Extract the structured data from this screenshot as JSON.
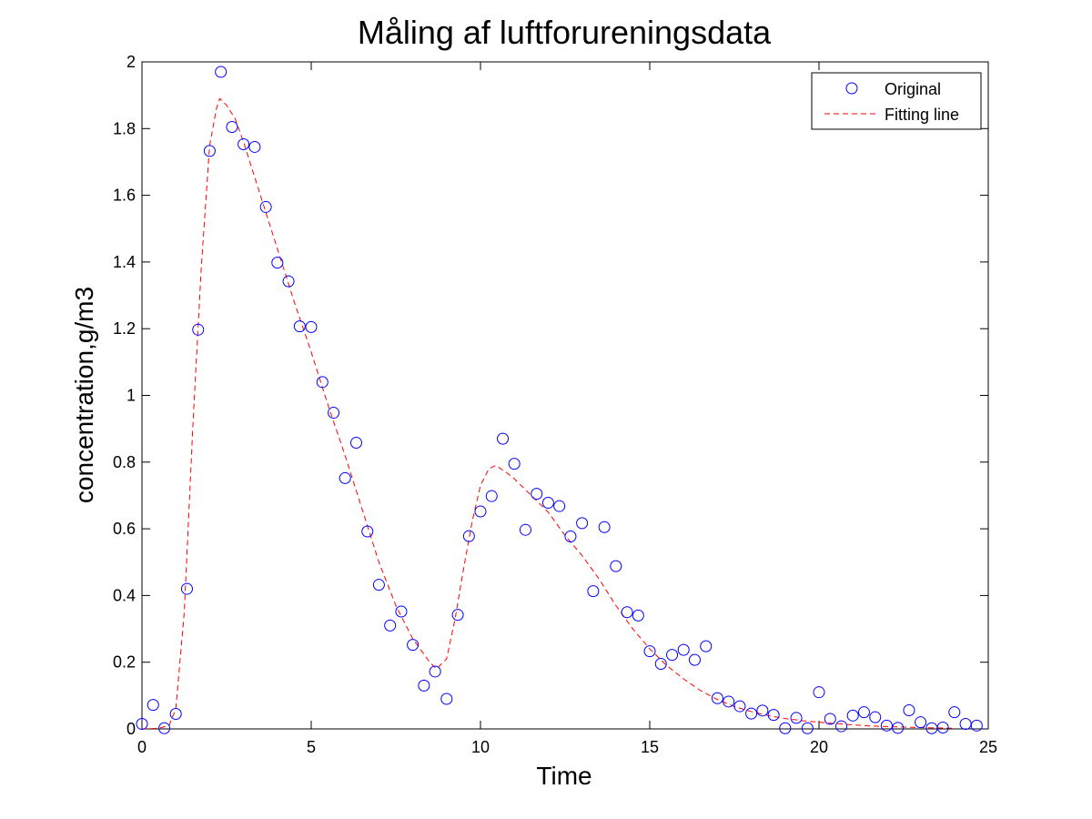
{
  "chart_data": {
    "type": "scatter",
    "title": "Måling af luftforureningsdata",
    "xlabel": "Time",
    "ylabel": "concentration,g/m3",
    "xlim": [
      0,
      25
    ],
    "ylim": [
      0,
      2
    ],
    "xticks": [
      0,
      5,
      10,
      15,
      20,
      25
    ],
    "yticks": [
      0,
      0.2,
      0.4,
      0.6,
      0.8,
      1,
      1.2,
      1.4,
      1.6,
      1.8,
      2
    ],
    "grid": false,
    "legend_position": "top-right",
    "series": [
      {
        "name": "Original",
        "kind": "markers",
        "color": "#0000ff",
        "points": [
          [
            0,
            0.015
          ],
          [
            0.33,
            0.072
          ],
          [
            0.66,
            0.002
          ],
          [
            1,
            0.045
          ],
          [
            1.33,
            0.42
          ],
          [
            1.66,
            1.197
          ],
          [
            2,
            1.733
          ],
          [
            2.33,
            1.97
          ],
          [
            2.66,
            1.805
          ],
          [
            3,
            1.753
          ],
          [
            3.33,
            1.745
          ],
          [
            3.66,
            1.565
          ],
          [
            4,
            1.398
          ],
          [
            4.33,
            1.342
          ],
          [
            4.66,
            1.207
          ],
          [
            5,
            1.205
          ],
          [
            5.33,
            1.04
          ],
          [
            5.66,
            0.948
          ],
          [
            6,
            0.752
          ],
          [
            6.33,
            0.858
          ],
          [
            6.66,
            0.592
          ],
          [
            7,
            0.432
          ],
          [
            7.33,
            0.31
          ],
          [
            7.66,
            0.352
          ],
          [
            8,
            0.252
          ],
          [
            8.33,
            0.13
          ],
          [
            8.66,
            0.172
          ],
          [
            9,
            0.09
          ],
          [
            9.33,
            0.342
          ],
          [
            9.66,
            0.578
          ],
          [
            10,
            0.652
          ],
          [
            10.33,
            0.698
          ],
          [
            10.66,
            0.87
          ],
          [
            11,
            0.795
          ],
          [
            11.33,
            0.597
          ],
          [
            11.66,
            0.705
          ],
          [
            12,
            0.678
          ],
          [
            12.33,
            0.668
          ],
          [
            12.66,
            0.577
          ],
          [
            13,
            0.617
          ],
          [
            13.33,
            0.413
          ],
          [
            13.66,
            0.605
          ],
          [
            14,
            0.488
          ],
          [
            14.33,
            0.35
          ],
          [
            14.66,
            0.34
          ],
          [
            15,
            0.233
          ],
          [
            15.33,
            0.195
          ],
          [
            15.66,
            0.222
          ],
          [
            16,
            0.237
          ],
          [
            16.33,
            0.207
          ],
          [
            16.66,
            0.248
          ],
          [
            17,
            0.092
          ],
          [
            17.33,
            0.082
          ],
          [
            17.66,
            0.068
          ],
          [
            18,
            0.046
          ],
          [
            18.33,
            0.055
          ],
          [
            18.66,
            0.042
          ],
          [
            19,
            0.002
          ],
          [
            19.33,
            0.033
          ],
          [
            19.66,
            0.002
          ],
          [
            20,
            0.11
          ],
          [
            20.33,
            0.03
          ],
          [
            20.66,
            0.008
          ],
          [
            21,
            0.04
          ],
          [
            21.33,
            0.05
          ],
          [
            21.66,
            0.035
          ],
          [
            22,
            0.01
          ],
          [
            22.33,
            0.003
          ],
          [
            22.66,
            0.056
          ],
          [
            23,
            0.02
          ],
          [
            23.33,
            0.002
          ],
          [
            23.66,
            0.004
          ],
          [
            24,
            0.05
          ],
          [
            24.33,
            0.015
          ],
          [
            24.66,
            0.01
          ]
        ]
      },
      {
        "name": "Fitting line",
        "kind": "dashed-line",
        "color": "#ff0000",
        "points": [
          [
            0,
            0
          ],
          [
            0.5,
            0.002
          ],
          [
            0.8,
            0.01
          ],
          [
            1.0,
            0.06
          ],
          [
            1.25,
            0.35
          ],
          [
            1.5,
            0.9
          ],
          [
            1.75,
            1.38
          ],
          [
            2.0,
            1.75
          ],
          [
            2.2,
            1.86
          ],
          [
            2.3,
            1.89
          ],
          [
            2.5,
            1.87
          ],
          [
            2.75,
            1.83
          ],
          [
            3.0,
            1.76
          ],
          [
            3.5,
            1.6
          ],
          [
            4.0,
            1.44
          ],
          [
            4.5,
            1.28
          ],
          [
            5.0,
            1.13
          ],
          [
            5.5,
            0.97
          ],
          [
            6.0,
            0.82
          ],
          [
            6.5,
            0.66
          ],
          [
            7.0,
            0.5
          ],
          [
            7.5,
            0.37
          ],
          [
            8.0,
            0.27
          ],
          [
            8.5,
            0.2
          ],
          [
            8.7,
            0.18
          ],
          [
            9.0,
            0.21
          ],
          [
            9.25,
            0.33
          ],
          [
            9.5,
            0.48
          ],
          [
            9.75,
            0.62
          ],
          [
            10.0,
            0.73
          ],
          [
            10.25,
            0.78
          ],
          [
            10.45,
            0.79
          ],
          [
            10.75,
            0.77
          ],
          [
            11.0,
            0.75
          ],
          [
            11.5,
            0.7
          ],
          [
            12.0,
            0.65
          ],
          [
            12.5,
            0.58
          ],
          [
            13.0,
            0.52
          ],
          [
            13.5,
            0.45
          ],
          [
            14.0,
            0.37
          ],
          [
            14.5,
            0.3
          ],
          [
            15.0,
            0.24
          ],
          [
            15.5,
            0.19
          ],
          [
            16.0,
            0.15
          ],
          [
            16.5,
            0.115
          ],
          [
            17.0,
            0.088
          ],
          [
            17.5,
            0.067
          ],
          [
            18.0,
            0.052
          ],
          [
            18.5,
            0.04
          ],
          [
            19.0,
            0.031
          ],
          [
            19.5,
            0.025
          ],
          [
            20.0,
            0.02
          ],
          [
            20.5,
            0.016
          ],
          [
            21.0,
            0.012
          ],
          [
            21.5,
            0.009
          ],
          [
            22.0,
            0.007
          ],
          [
            23.0,
            0.004
          ],
          [
            24.0,
            0.002
          ]
        ]
      }
    ]
  }
}
